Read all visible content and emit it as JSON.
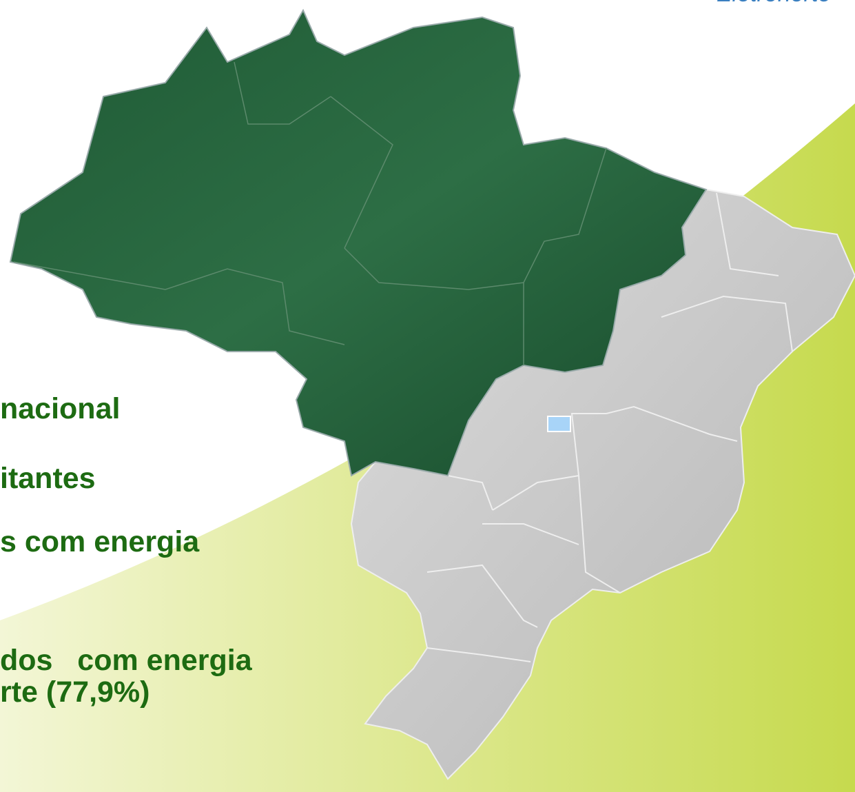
{
  "logo": "Eletronorte",
  "bullets": [
    "nacional",
    "itantes",
    "s com energia",
    "dos   com energia",
    "rte (77,9%)"
  ]
}
